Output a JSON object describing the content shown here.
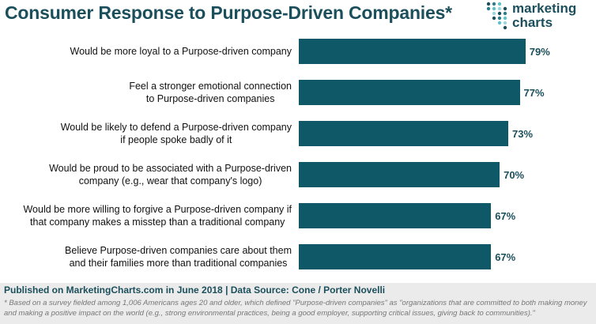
{
  "header": {
    "title": "Consumer Response to Purpose-Driven Companies*",
    "logo_line1": "marketing",
    "logo_line2": "charts"
  },
  "chart_data": {
    "type": "bar",
    "orientation": "horizontal",
    "categories": [
      [
        "Would be more loyal to a Purpose-driven company"
      ],
      [
        "Feel a stronger emotional connection",
        "to Purpose-driven companies"
      ],
      [
        "Would be likely to defend a Purpose-driven company",
        "if people spoke badly of it"
      ],
      [
        "Would be proud to be associated with a Purpose-driven",
        "company (e.g., wear that company's logo)"
      ],
      [
        "Would be more willing to forgive a Purpose-driven company if",
        "that company makes a misstep than a traditional company"
      ],
      [
        "Believe Purpose-driven companies care about them",
        "and their families more than traditional companies"
      ]
    ],
    "values": [
      79,
      77,
      73,
      70,
      67,
      67
    ],
    "value_labels": [
      "79%",
      "77%",
      "73%",
      "70%",
      "67%",
      "67%"
    ],
    "xlim": [
      0,
      100
    ],
    "bar_color": "#0f5868",
    "grid": false
  },
  "footer": {
    "source": "Published on MarketingCharts.com in June 2018 | Data Source: Cone / Porter Novelli",
    "note": "* Based on a survey fielded among 1,006 Americans ages 20 and older, which defined \"Purpose-driven companies\" as \"organizations that are committed to both making money and making a positive impact on the world (e.g., strong environmental practices, being a good employer, supporting critical issues, giving back to communities).\""
  },
  "colors": {
    "title": "#1b4f5c",
    "logo_dots": [
      "#1b4f5c",
      "#2e7d8c",
      "#5ec3c9",
      "#9ad7dc"
    ]
  }
}
